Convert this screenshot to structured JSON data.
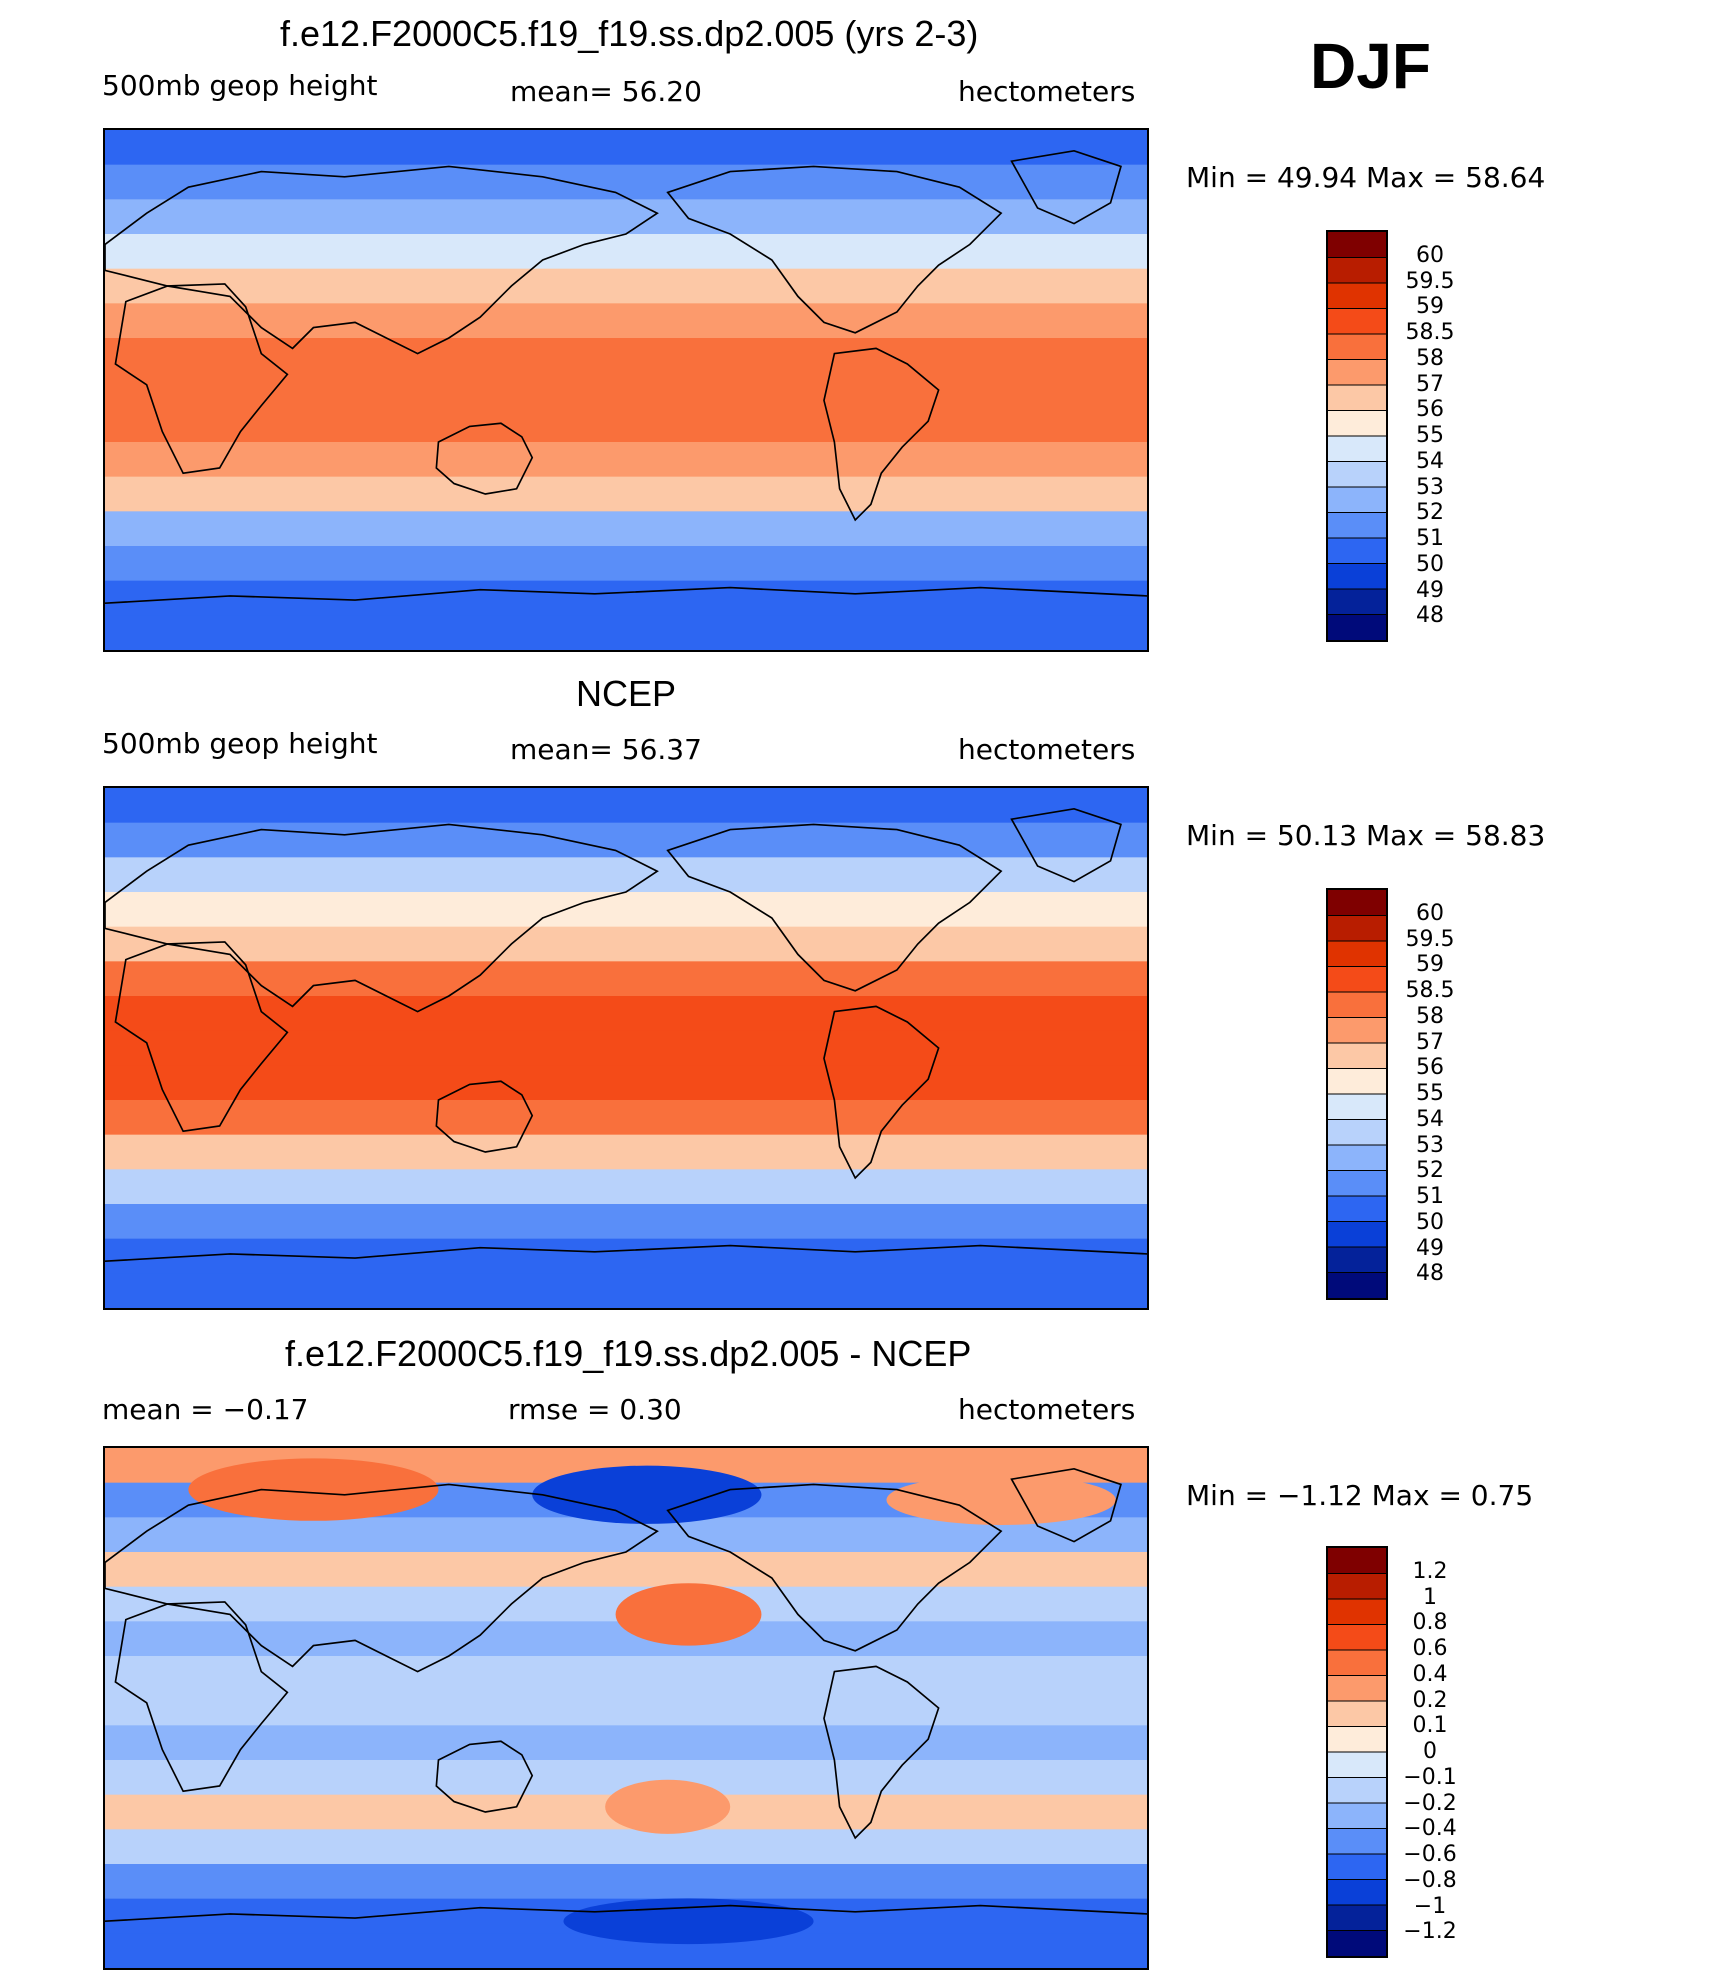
{
  "season": "DJF",
  "panels": [
    {
      "title": "f.e12.F2000C5.f19_f19.ss.dp2.005 (yrs 2-3)",
      "left_label": "500mb geop height",
      "center_label": "mean=   56.20",
      "right_label": "hectometers",
      "minmax": "Min =    49.94  Max =    58.64",
      "colorbar": {
        "labels": [
          "60",
          "59.5",
          "59",
          "58.5",
          "58",
          "57",
          "56",
          "55",
          "54",
          "53",
          "52",
          "51",
          "50",
          "49",
          "48"
        ],
        "colors": [
          "#7f0000",
          "#b81d00",
          "#e03300",
          "#f44b18",
          "#f9703c",
          "#fc9a6c",
          "#fcc8a6",
          "#feecda",
          "#d8e8fa",
          "#b8d2fb",
          "#8cb4fb",
          "#5a8ef8",
          "#2d66f2",
          "#0a40d8",
          "#04229a",
          "#000a7a"
        ]
      },
      "bands": [
        "#2d66f2",
        "#5a8ef8",
        "#8cb4fb",
        "#d8e8fa",
        "#fcc8a6",
        "#fc9a6c",
        "#f9703c",
        "#f9703c",
        "#f9703c",
        "#fc9a6c",
        "#fcc8a6",
        "#8cb4fb",
        "#5a8ef8",
        "#2d66f2",
        "#2d66f2"
      ]
    },
    {
      "title": "NCEP",
      "left_label": "500mb geop height",
      "center_label": "mean=   56.37",
      "right_label": "hectometers",
      "minmax": "Min =    50.13  Max =    58.83",
      "colorbar": {
        "labels": [
          "60",
          "59.5",
          "59",
          "58.5",
          "58",
          "57",
          "56",
          "55",
          "54",
          "53",
          "52",
          "51",
          "50",
          "49",
          "48"
        ],
        "colors": [
          "#7f0000",
          "#b81d00",
          "#e03300",
          "#f44b18",
          "#f9703c",
          "#fc9a6c",
          "#fcc8a6",
          "#feecda",
          "#d8e8fa",
          "#b8d2fb",
          "#8cb4fb",
          "#5a8ef8",
          "#2d66f2",
          "#0a40d8",
          "#04229a",
          "#000a7a"
        ]
      },
      "bands": [
        "#2d66f2",
        "#5a8ef8",
        "#b8d2fb",
        "#feecda",
        "#fcc8a6",
        "#f9703c",
        "#f44b18",
        "#f44b18",
        "#f44b18",
        "#f9703c",
        "#fcc8a6",
        "#b8d2fb",
        "#5a8ef8",
        "#2d66f2",
        "#2d66f2"
      ]
    },
    {
      "title": "f.e12.F2000C5.f19_f19.ss.dp2.005 - NCEP",
      "left_label": "mean =    −0.17",
      "center_label": "rmse =     0.30",
      "right_label": "hectometers",
      "minmax": "Min =   −1.12  Max =     0.75",
      "colorbar": {
        "labels": [
          "1.2",
          "1",
          "0.8",
          "0.6",
          "0.4",
          "0.2",
          "0.1",
          "0",
          "−0.1",
          "−0.2",
          "−0.4",
          "−0.6",
          "−0.8",
          "−1",
          "−1.2"
        ],
        "colors": [
          "#7f0000",
          "#b81d00",
          "#e03300",
          "#f44b18",
          "#f9703c",
          "#fc9a6c",
          "#fcc8a6",
          "#feecda",
          "#d8e8fa",
          "#b8d2fb",
          "#8cb4fb",
          "#5a8ef8",
          "#2d66f2",
          "#0a40d8",
          "#04229a",
          "#000a7a"
        ]
      },
      "bands": [
        "#fc9a6c",
        "#5a8ef8",
        "#8cb4fb",
        "#fcc8a6",
        "#b8d2fb",
        "#8cb4fb",
        "#b8d2fb",
        "#b8d2fb",
        "#8cb4fb",
        "#b8d2fb",
        "#fcc8a6",
        "#b8d2fb",
        "#5a8ef8",
        "#2d66f2",
        "#2d66f2"
      ]
    }
  ]
}
